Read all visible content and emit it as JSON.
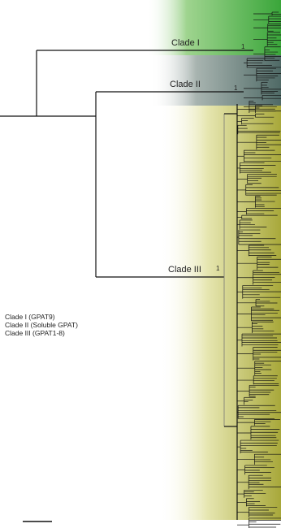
{
  "tree": {
    "clades": [
      {
        "name": "Clade I",
        "support": "1"
      },
      {
        "name": "Clade II",
        "support": "1"
      },
      {
        "name": "Clade III",
        "support": "1"
      }
    ],
    "legend": [
      "Clade I (GPAT9)",
      "Clade II (Soluble GPAT)",
      "Clade III (GPAT1-8)"
    ]
  }
}
